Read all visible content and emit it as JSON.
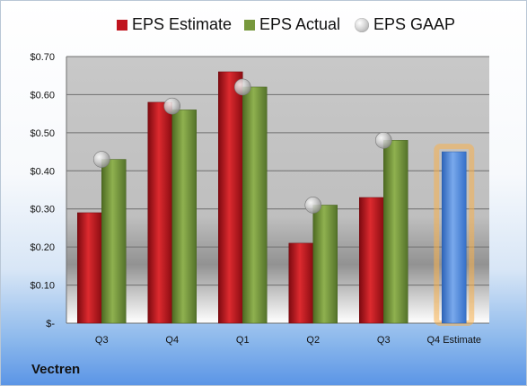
{
  "company": "Vectren",
  "colors": {
    "estimate": "#c0141e",
    "actual": "#77983d",
    "gaap": "#a7a7a7",
    "future_estimate": "#4f8be0",
    "future_glow": "#f7b04d"
  },
  "legend": {
    "estimate_label": "EPS Estimate",
    "actual_label": "EPS Actual",
    "gaap_label": "EPS GAAP"
  },
  "chart_data": {
    "type": "bar",
    "title": "",
    "xlabel": "",
    "ylabel": "",
    "categories": [
      "Q3",
      "Q4",
      "Q1",
      "Q2",
      "Q3",
      "Q4 Estimate"
    ],
    "series": [
      {
        "name": "EPS Estimate",
        "values": [
          0.29,
          0.58,
          0.66,
          0.21,
          0.33,
          null
        ]
      },
      {
        "name": "EPS Actual",
        "values": [
          0.43,
          0.56,
          0.62,
          0.31,
          0.48,
          0.45
        ]
      },
      {
        "name": "EPS GAAP",
        "values": [
          0.43,
          0.57,
          0.62,
          0.31,
          0.48,
          null
        ]
      }
    ],
    "ylim": [
      0,
      0.7
    ],
    "yticks": [
      0,
      0.1,
      0.2,
      0.3,
      0.4,
      0.5,
      0.6,
      0.7
    ],
    "ytick_labels": [
      "$-",
      "$0.10",
      "$0.20",
      "$0.30",
      "$0.40",
      "$0.50",
      "$0.60",
      "$0.70"
    ],
    "grid": true,
    "legend_position": "top"
  }
}
